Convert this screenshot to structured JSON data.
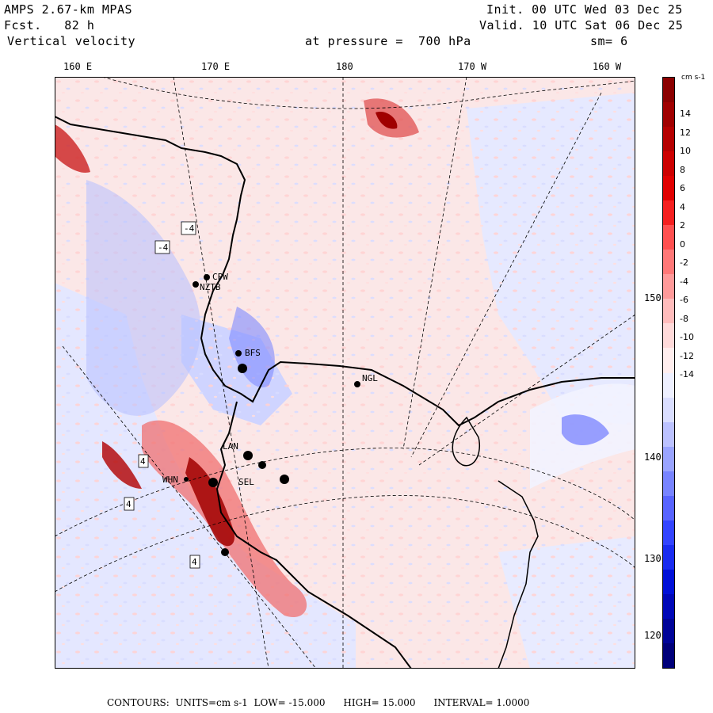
{
  "header": {
    "model": "AMPS 2.67-km MPAS",
    "fcst_label": "Fcst.",
    "fcst_value": "82 h",
    "field": "Vertical velocity",
    "init": "Init. 00 UTC Wed 03 Dec 25",
    "valid": "Valid. 10 UTC Sat 06 Dec 25",
    "pressure_label": "at pressure =",
    "pressure_value": "700 hPa",
    "smoothing": "sm= 6"
  },
  "longitude_labels": [
    "160 E",
    "170 E",
    "180",
    "170 W",
    "160 W"
  ],
  "latitude_labels": [
    "150 W",
    "140 W",
    "130 W",
    "120 W"
  ],
  "stations": [
    "CPW",
    "NZTB",
    "BFS",
    "NGL",
    "LAN",
    "WHN",
    "SEL"
  ],
  "contour_labels": [
    "-4",
    "-4",
    "4",
    "4",
    "4"
  ],
  "legend": {
    "units": "cm s-1",
    "ticks": [
      "14",
      "12",
      "10",
      "8",
      "6",
      "4",
      "2",
      "0",
      "-2",
      "-4",
      "-6",
      "-8",
      "-10",
      "-12",
      "-14"
    ],
    "colors": [
      "#8b0000",
      "#a00000",
      "#b50000",
      "#cc0000",
      "#e00000",
      "#f52020",
      "#ff5050",
      "#ff7878",
      "#ff9a9a",
      "#ffbcbc",
      "#ffdada",
      "#ffeeee",
      "#eef0ff",
      "#dadeff",
      "#bcc2ff",
      "#9aa4ff",
      "#7884ff",
      "#5864ff",
      "#3344ff",
      "#1a2cf0",
      "#0010d8",
      "#0008b8",
      "#000498",
      "#00007a"
    ]
  },
  "footer": {
    "label": "CONTOURS:",
    "units": "UNITS=cm s-1",
    "low": "LOW= -15.000",
    "high": "HIGH= 15.000",
    "interval": "INTERVAL= 1.0000"
  }
}
